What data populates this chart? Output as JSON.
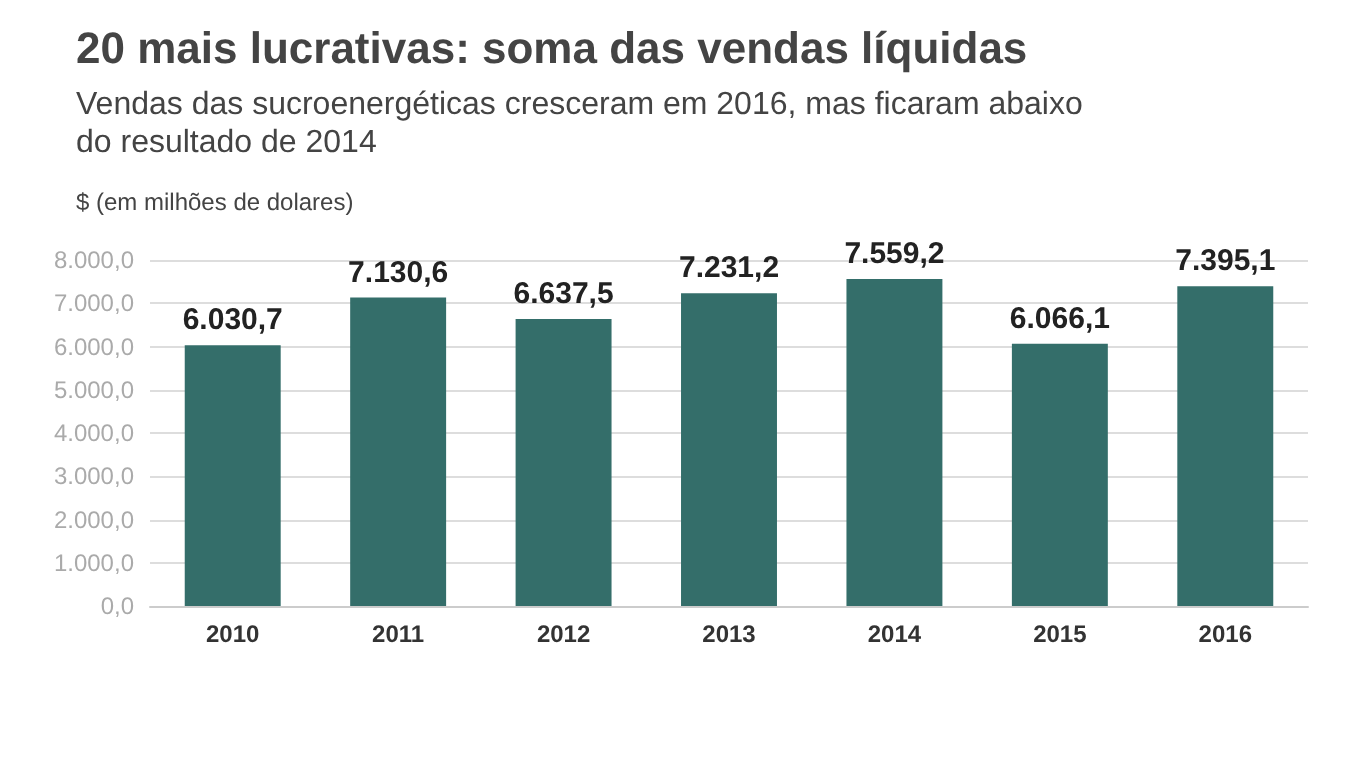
{
  "chart_data": {
    "type": "bar",
    "title": "20 mais lucrativas: soma das vendas líquidas",
    "subtitle": "Vendas das sucroenergéticas cresceram em 2016, mas ficaram abaixo do resultado de 2014",
    "ylabel": "$ (em milhões de dolares)",
    "categories": [
      "2010",
      "2011",
      "2012",
      "2013",
      "2014",
      "2015",
      "2016"
    ],
    "values": [
      6030.7,
      7130.6,
      6637.5,
      7231.2,
      7559.2,
      6066.1,
      7395.1
    ],
    "value_labels": [
      "6.030,7",
      "7.130,6",
      "6.637,5",
      "7.231,2",
      "7.559,2",
      "6.066,1",
      "7.395,1"
    ],
    "color": "#346e6a",
    "ylim": [
      0,
      8000
    ],
    "yticks": [
      {
        "value": 0,
        "label": "0,0"
      },
      {
        "value": 1000,
        "label": "1.000,0"
      },
      {
        "value": 2000,
        "label": "2.000,0"
      },
      {
        "value": 3000,
        "label": "3.000,0"
      },
      {
        "value": 4000,
        "label": "4.000,0"
      },
      {
        "value": 5000,
        "label": "5.000,0"
      },
      {
        "value": 6000,
        "label": "6.000,0"
      },
      {
        "value": 7000,
        "label": "7.000,0"
      },
      {
        "value": 8000,
        "label": "8.000,0"
      }
    ],
    "grid": "y"
  }
}
